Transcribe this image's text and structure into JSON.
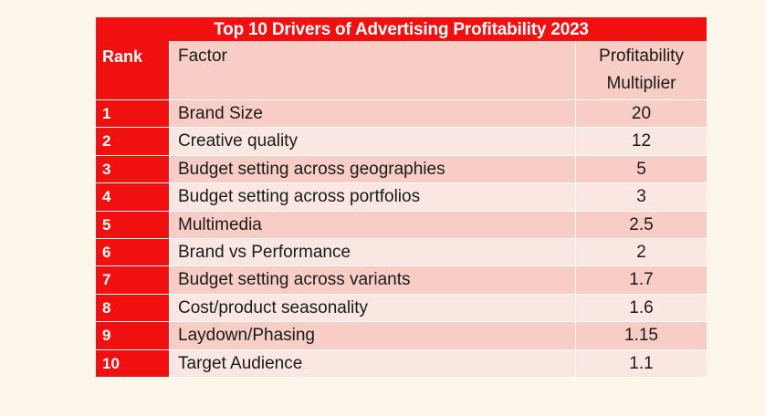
{
  "title": "Top 10 Drivers of Advertising Profitability 2023",
  "headers": {
    "rank": "Rank",
    "factor": "Factor",
    "multiplier_line1": "Profitability",
    "multiplier_line2": "Multiplier"
  },
  "rows": [
    {
      "rank": "1",
      "factor": "Brand Size",
      "multiplier": "20"
    },
    {
      "rank": "2",
      "factor": "Creative quality",
      "multiplier": "12"
    },
    {
      "rank": "3",
      "factor": "Budget setting across geographies",
      "multiplier": "5"
    },
    {
      "rank": "4",
      "factor": "Budget setting across portfolios",
      "multiplier": "3"
    },
    {
      "rank": "5",
      "factor": "Multimedia",
      "multiplier": "2.5"
    },
    {
      "rank": "6",
      "factor": "Brand vs Performance",
      "multiplier": "2"
    },
    {
      "rank": "7",
      "factor": "Budget setting across variants",
      "multiplier": "1.7"
    },
    {
      "rank": "8",
      "factor": "Cost/product seasonality",
      "multiplier": "1.6"
    },
    {
      "rank": "9",
      "factor": "Laydown/Phasing",
      "multiplier": "1.15"
    },
    {
      "rank": "10",
      "factor": "Target Audience",
      "multiplier": "1.1"
    }
  ],
  "colors": {
    "accent_red": "#f01010",
    "row_dark": "#f8cdc6",
    "row_light": "#fbe7e2",
    "background": "#fdf6ea"
  }
}
